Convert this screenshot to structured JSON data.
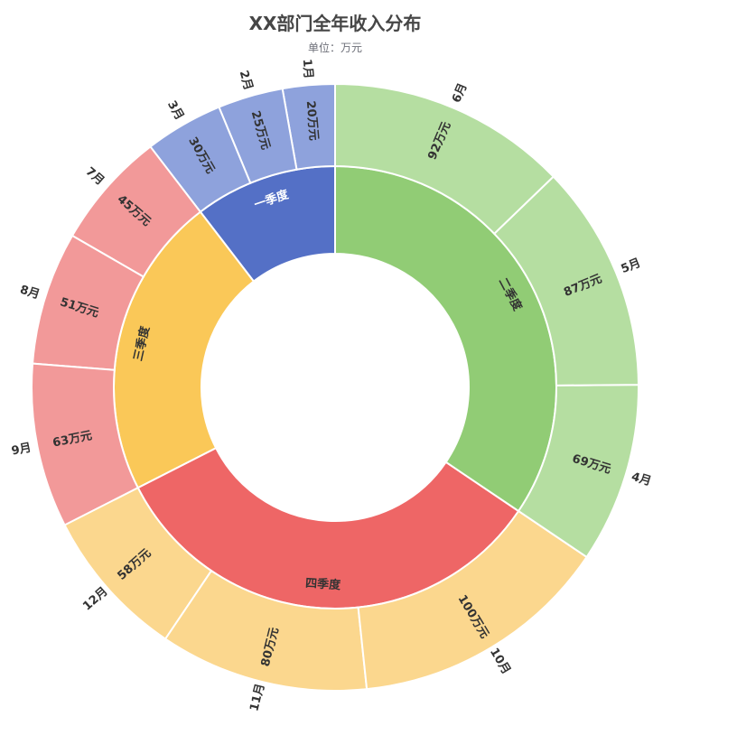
{
  "chart_data": {
    "type": "sunburst",
    "title": "XX部门全年收入分布",
    "subtitle": "单位：万元",
    "value_suffix": "万元",
    "quarters": [
      {
        "name": "一季度",
        "color": "#5470c6",
        "light": "#8ea2dc",
        "months": [
          {
            "name": "1月",
            "value": 20
          },
          {
            "name": "2月",
            "value": 25
          },
          {
            "name": "3月",
            "value": 30
          }
        ]
      },
      {
        "name": "三季度",
        "color": "#fac858",
        "light": "#f29999",
        "months": [
          {
            "name": "7月",
            "value": 45
          },
          {
            "name": "8月",
            "value": 51
          },
          {
            "name": "9月",
            "value": 63
          }
        ]
      },
      {
        "name": "四季度",
        "color": "#ee6666",
        "light": "#fbd78e",
        "months": [
          {
            "name": "12月",
            "value": 58
          },
          {
            "name": "11月",
            "value": 80
          },
          {
            "name": "10月",
            "value": 100
          }
        ]
      },
      {
        "name": "二季度",
        "color": "#91cc75",
        "light": "#b5dea1",
        "months": [
          {
            "name": "4月",
            "value": 69
          },
          {
            "name": "5月",
            "value": 87
          },
          {
            "name": "6月",
            "value": 92
          }
        ]
      }
    ]
  }
}
